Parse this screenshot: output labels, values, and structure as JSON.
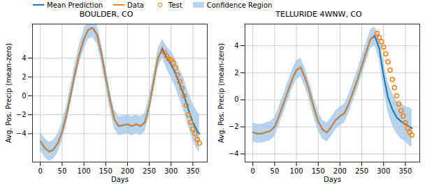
{
  "chart_data": [
    {
      "type": "line",
      "title": "BOULDER, CO",
      "x_label": "Days",
      "y_label": "Avg. Pos. Precip (mean-zero)",
      "xlim": [
        -18,
        383
      ],
      "ylim": [
        -7,
        7.6
      ],
      "xticks": [
        0,
        50,
        100,
        150,
        200,
        250,
        300,
        350
      ],
      "yticks": [
        -4,
        -2,
        0,
        2,
        4
      ],
      "grid": true,
      "legend": "upper left",
      "series": [
        {
          "name": "Mean Prediction",
          "type": "line",
          "color": "#1f77b4",
          "x": [
            0,
            10,
            20,
            30,
            40,
            50,
            60,
            70,
            80,
            90,
            100,
            110,
            120,
            130,
            140,
            150,
            160,
            170,
            180,
            190,
            200,
            210,
            220,
            230,
            240,
            250,
            260,
            270,
            280,
            290,
            300,
            310,
            320,
            330,
            340,
            350,
            360,
            365
          ],
          "values": [
            -4.8,
            -5.5,
            -5.9,
            -5.7,
            -5.0,
            -3.8,
            -2.0,
            0.2,
            2.5,
            4.5,
            6.0,
            7.0,
            7.2,
            6.5,
            4.5,
            2.0,
            -0.5,
            -2.5,
            -3.2,
            -3.1,
            -3.0,
            -3.2,
            -3.0,
            -3.2,
            -2.8,
            -1.0,
            1.5,
            4.0,
            5.0,
            4.0,
            3.3,
            2.4,
            1.2,
            0.0,
            -1.5,
            -2.8,
            -3.7,
            -4.0
          ]
        },
        {
          "name": "Data",
          "type": "line",
          "color": "#ff7f0e",
          "x": [
            0,
            10,
            20,
            30,
            40,
            50,
            60,
            70,
            80,
            90,
            100,
            110,
            120,
            130,
            140,
            150,
            160,
            170,
            180,
            190,
            200,
            210,
            220,
            230,
            240,
            250,
            260,
            270,
            280
          ],
          "values": [
            -4.8,
            -5.5,
            -5.9,
            -5.7,
            -5.0,
            -3.8,
            -2.0,
            0.2,
            2.5,
            4.5,
            6.0,
            7.0,
            7.2,
            6.5,
            4.5,
            2.0,
            -0.5,
            -2.5,
            -3.2,
            -3.1,
            -3.0,
            -3.2,
            -3.0,
            -3.2,
            -2.8,
            -1.0,
            1.5,
            4.0,
            5.2
          ]
        },
        {
          "name": "Test",
          "type": "scatter",
          "marker": "circle",
          "color": "#ff7f0e",
          "x": [
            285,
            290,
            295,
            300,
            305,
            310,
            315,
            320,
            325,
            330,
            335,
            340,
            345,
            350,
            355,
            360,
            365
          ],
          "values": [
            4.6,
            4.2,
            3.9,
            3.8,
            3.5,
            3.0,
            2.2,
            1.5,
            0.8,
            0.0,
            -1.0,
            -2.0,
            -2.8,
            -3.5,
            -4.0,
            -4.6,
            -5.0
          ]
        },
        {
          "name": "Confidence Region",
          "type": "area",
          "color": "#a6c8e6",
          "x": [
            0,
            10,
            20,
            30,
            40,
            50,
            60,
            70,
            80,
            90,
            100,
            110,
            120,
            130,
            140,
            150,
            160,
            170,
            180,
            190,
            200,
            210,
            220,
            230,
            240,
            250,
            260,
            270,
            280,
            290,
            300,
            310,
            320,
            330,
            340,
            350,
            360,
            365
          ],
          "lower": [
            -5.8,
            -6.5,
            -6.9,
            -6.7,
            -6.0,
            -4.8,
            -3.0,
            -0.8,
            1.5,
            3.5,
            5.0,
            6.0,
            6.2,
            5.5,
            3.5,
            1.0,
            -1.5,
            -3.5,
            -4.2,
            -4.1,
            -4.0,
            -4.2,
            -4.0,
            -4.2,
            -3.8,
            -2.0,
            0.5,
            3.0,
            4.0,
            2.8,
            1.9,
            0.9,
            -0.4,
            -1.7,
            -3.3,
            -4.7,
            -5.7,
            -6.0
          ],
          "upper": [
            -3.8,
            -4.5,
            -4.9,
            -4.7,
            -4.0,
            -2.8,
            -1.0,
            1.2,
            3.5,
            5.5,
            7.0,
            8.0,
            8.2,
            7.5,
            5.5,
            3.0,
            0.5,
            -1.5,
            -2.2,
            -2.1,
            -2.0,
            -2.2,
            -2.0,
            -2.2,
            -1.8,
            0.0,
            2.5,
            5.0,
            6.0,
            5.2,
            4.7,
            3.9,
            2.8,
            1.7,
            0.3,
            -0.9,
            -1.7,
            -2.0
          ]
        }
      ]
    },
    {
      "type": "line",
      "title": "TELLURIDE 4WNW, CO",
      "x_label": "Days",
      "y_label": "Avg. Pos. Precip (mean-zero)",
      "xlim": [
        -18,
        383
      ],
      "ylim": [
        -4.6,
        5.6
      ],
      "xticks": [
        0,
        50,
        100,
        150,
        200,
        250,
        300,
        350
      ],
      "yticks": [
        -4,
        -2,
        0,
        2,
        4
      ],
      "grid": true,
      "series": [
        {
          "name": "Mean Prediction",
          "type": "line",
          "color": "#1f77b4",
          "x": [
            0,
            10,
            20,
            30,
            40,
            50,
            60,
            70,
            80,
            90,
            100,
            110,
            120,
            130,
            140,
            150,
            160,
            170,
            180,
            190,
            200,
            210,
            220,
            230,
            240,
            250,
            260,
            270,
            280,
            290,
            300,
            310,
            320,
            330,
            340,
            350,
            360,
            365
          ],
          "values": [
            -2.4,
            -2.5,
            -2.5,
            -2.4,
            -2.3,
            -2.0,
            -1.2,
            -0.3,
            0.6,
            1.5,
            2.2,
            2.4,
            1.6,
            0.6,
            -0.6,
            -1.6,
            -2.2,
            -2.4,
            -2.0,
            -1.5,
            -1.2,
            -1.0,
            -0.3,
            0.6,
            1.5,
            2.5,
            3.5,
            4.5,
            4.7,
            3.8,
            1.8,
            0.2,
            -0.7,
            -1.3,
            -1.6,
            -1.8,
            -2.0,
            -2.1
          ]
        },
        {
          "name": "Data",
          "type": "line",
          "color": "#ff7f0e",
          "x": [
            0,
            10,
            20,
            30,
            40,
            50,
            60,
            70,
            80,
            90,
            100,
            110,
            120,
            130,
            140,
            150,
            160,
            170,
            180,
            190,
            200,
            210,
            220,
            230,
            240,
            250,
            260,
            270,
            280
          ],
          "values": [
            -2.4,
            -2.5,
            -2.5,
            -2.4,
            -2.3,
            -2.0,
            -1.2,
            -0.3,
            0.6,
            1.5,
            2.2,
            2.4,
            1.6,
            0.6,
            -0.6,
            -1.6,
            -2.2,
            -2.4,
            -2.0,
            -1.5,
            -1.2,
            -1.0,
            -0.3,
            0.6,
            1.5,
            2.5,
            3.5,
            4.5,
            4.8
          ]
        },
        {
          "name": "Test",
          "type": "scatter",
          "marker": "circle",
          "color": "#ff7f0e",
          "x": [
            285,
            290,
            295,
            300,
            305,
            310,
            315,
            320,
            325,
            330,
            335,
            340,
            345,
            350,
            355,
            360,
            365
          ],
          "values": [
            4.9,
            4.6,
            4.3,
            3.9,
            3.4,
            2.8,
            2.2,
            1.5,
            0.9,
            0.3,
            -0.3,
            -0.8,
            -1.2,
            -1.7,
            -2.1,
            -2.4,
            -2.6
          ]
        },
        {
          "name": "Confidence Region",
          "type": "area",
          "color": "#a6c8e6",
          "x": [
            0,
            10,
            20,
            30,
            40,
            50,
            60,
            70,
            80,
            90,
            100,
            110,
            120,
            130,
            140,
            150,
            160,
            170,
            180,
            190,
            200,
            210,
            220,
            230,
            240,
            250,
            260,
            270,
            280,
            290,
            300,
            310,
            320,
            330,
            340,
            350,
            360,
            365
          ],
          "lower": [
            -3.1,
            -3.2,
            -3.2,
            -3.1,
            -3.0,
            -2.7,
            -1.9,
            -1.0,
            -0.1,
            0.8,
            1.5,
            1.7,
            0.9,
            -0.1,
            -1.3,
            -2.3,
            -2.9,
            -3.1,
            -2.7,
            -2.2,
            -1.9,
            -1.7,
            -1.0,
            -0.1,
            0.8,
            1.8,
            2.8,
            3.8,
            4.0,
            2.9,
            0.8,
            -0.9,
            -1.9,
            -2.5,
            -2.9,
            -3.1,
            -3.4,
            -3.5
          ],
          "upper": [
            -1.7,
            -1.8,
            -1.8,
            -1.7,
            -1.6,
            -1.3,
            -0.5,
            0.4,
            1.3,
            2.2,
            2.9,
            3.1,
            2.3,
            1.3,
            0.1,
            -0.9,
            -1.5,
            -1.7,
            -1.3,
            -0.8,
            -0.5,
            -0.3,
            0.4,
            1.3,
            2.2,
            3.2,
            4.2,
            5.2,
            5.4,
            4.7,
            2.8,
            1.3,
            0.5,
            -0.1,
            -0.3,
            -0.5,
            -0.6,
            -0.7
          ]
        }
      ]
    }
  ]
}
